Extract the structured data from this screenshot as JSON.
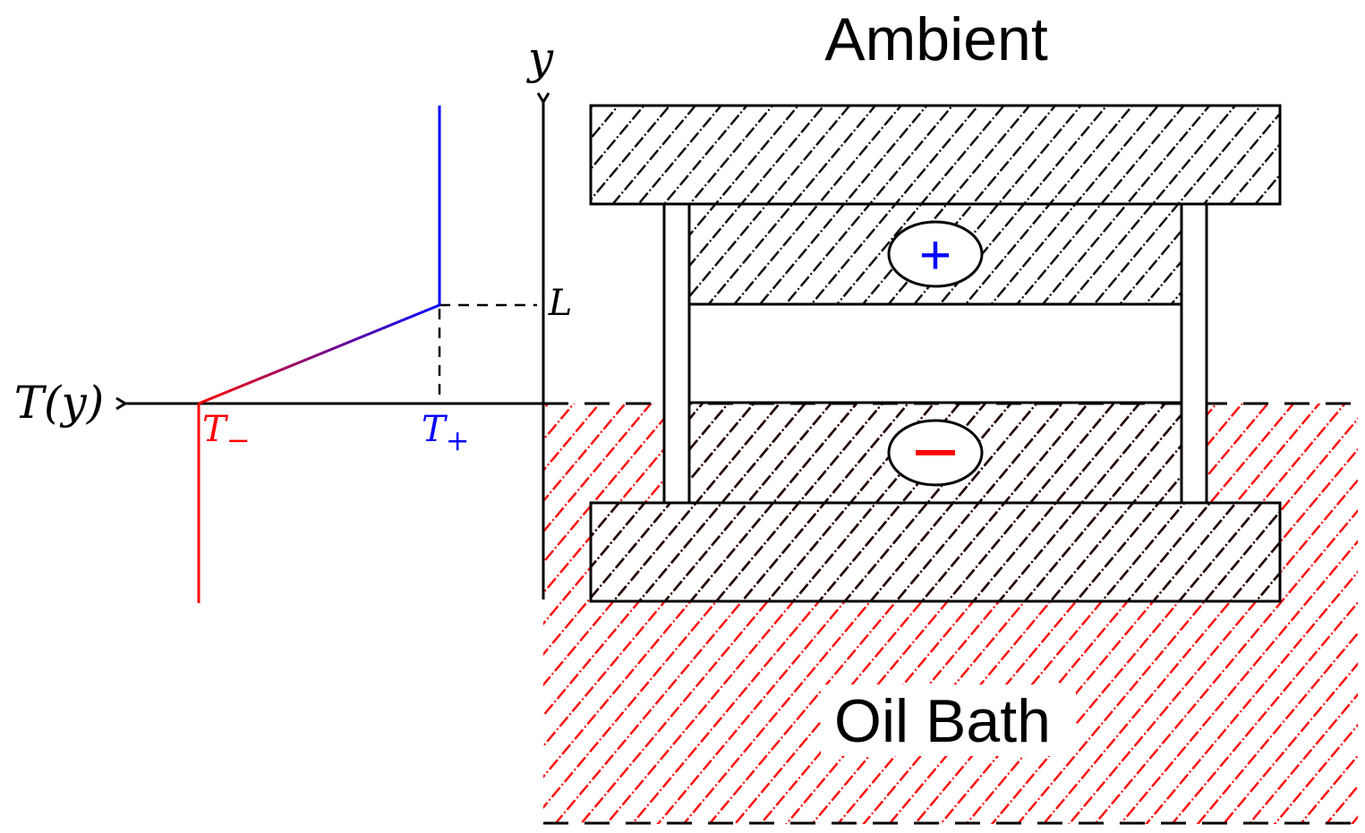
{
  "labels": {
    "ambient": "Ambient",
    "oil_bath": "Oil Bath",
    "y_axis": "y",
    "t_axis": "T(y)",
    "length": "L",
    "t_minus": "T",
    "t_minus_sub": "−",
    "t_plus": "T",
    "t_plus_sub": "+",
    "plus_sign": "+",
    "minus_sign": "−"
  },
  "colors": {
    "hot": "#ff0000",
    "cold": "#0000ff",
    "line": "#000000",
    "hatch_black": "#000000",
    "hatch_red": "#ff0000"
  }
}
